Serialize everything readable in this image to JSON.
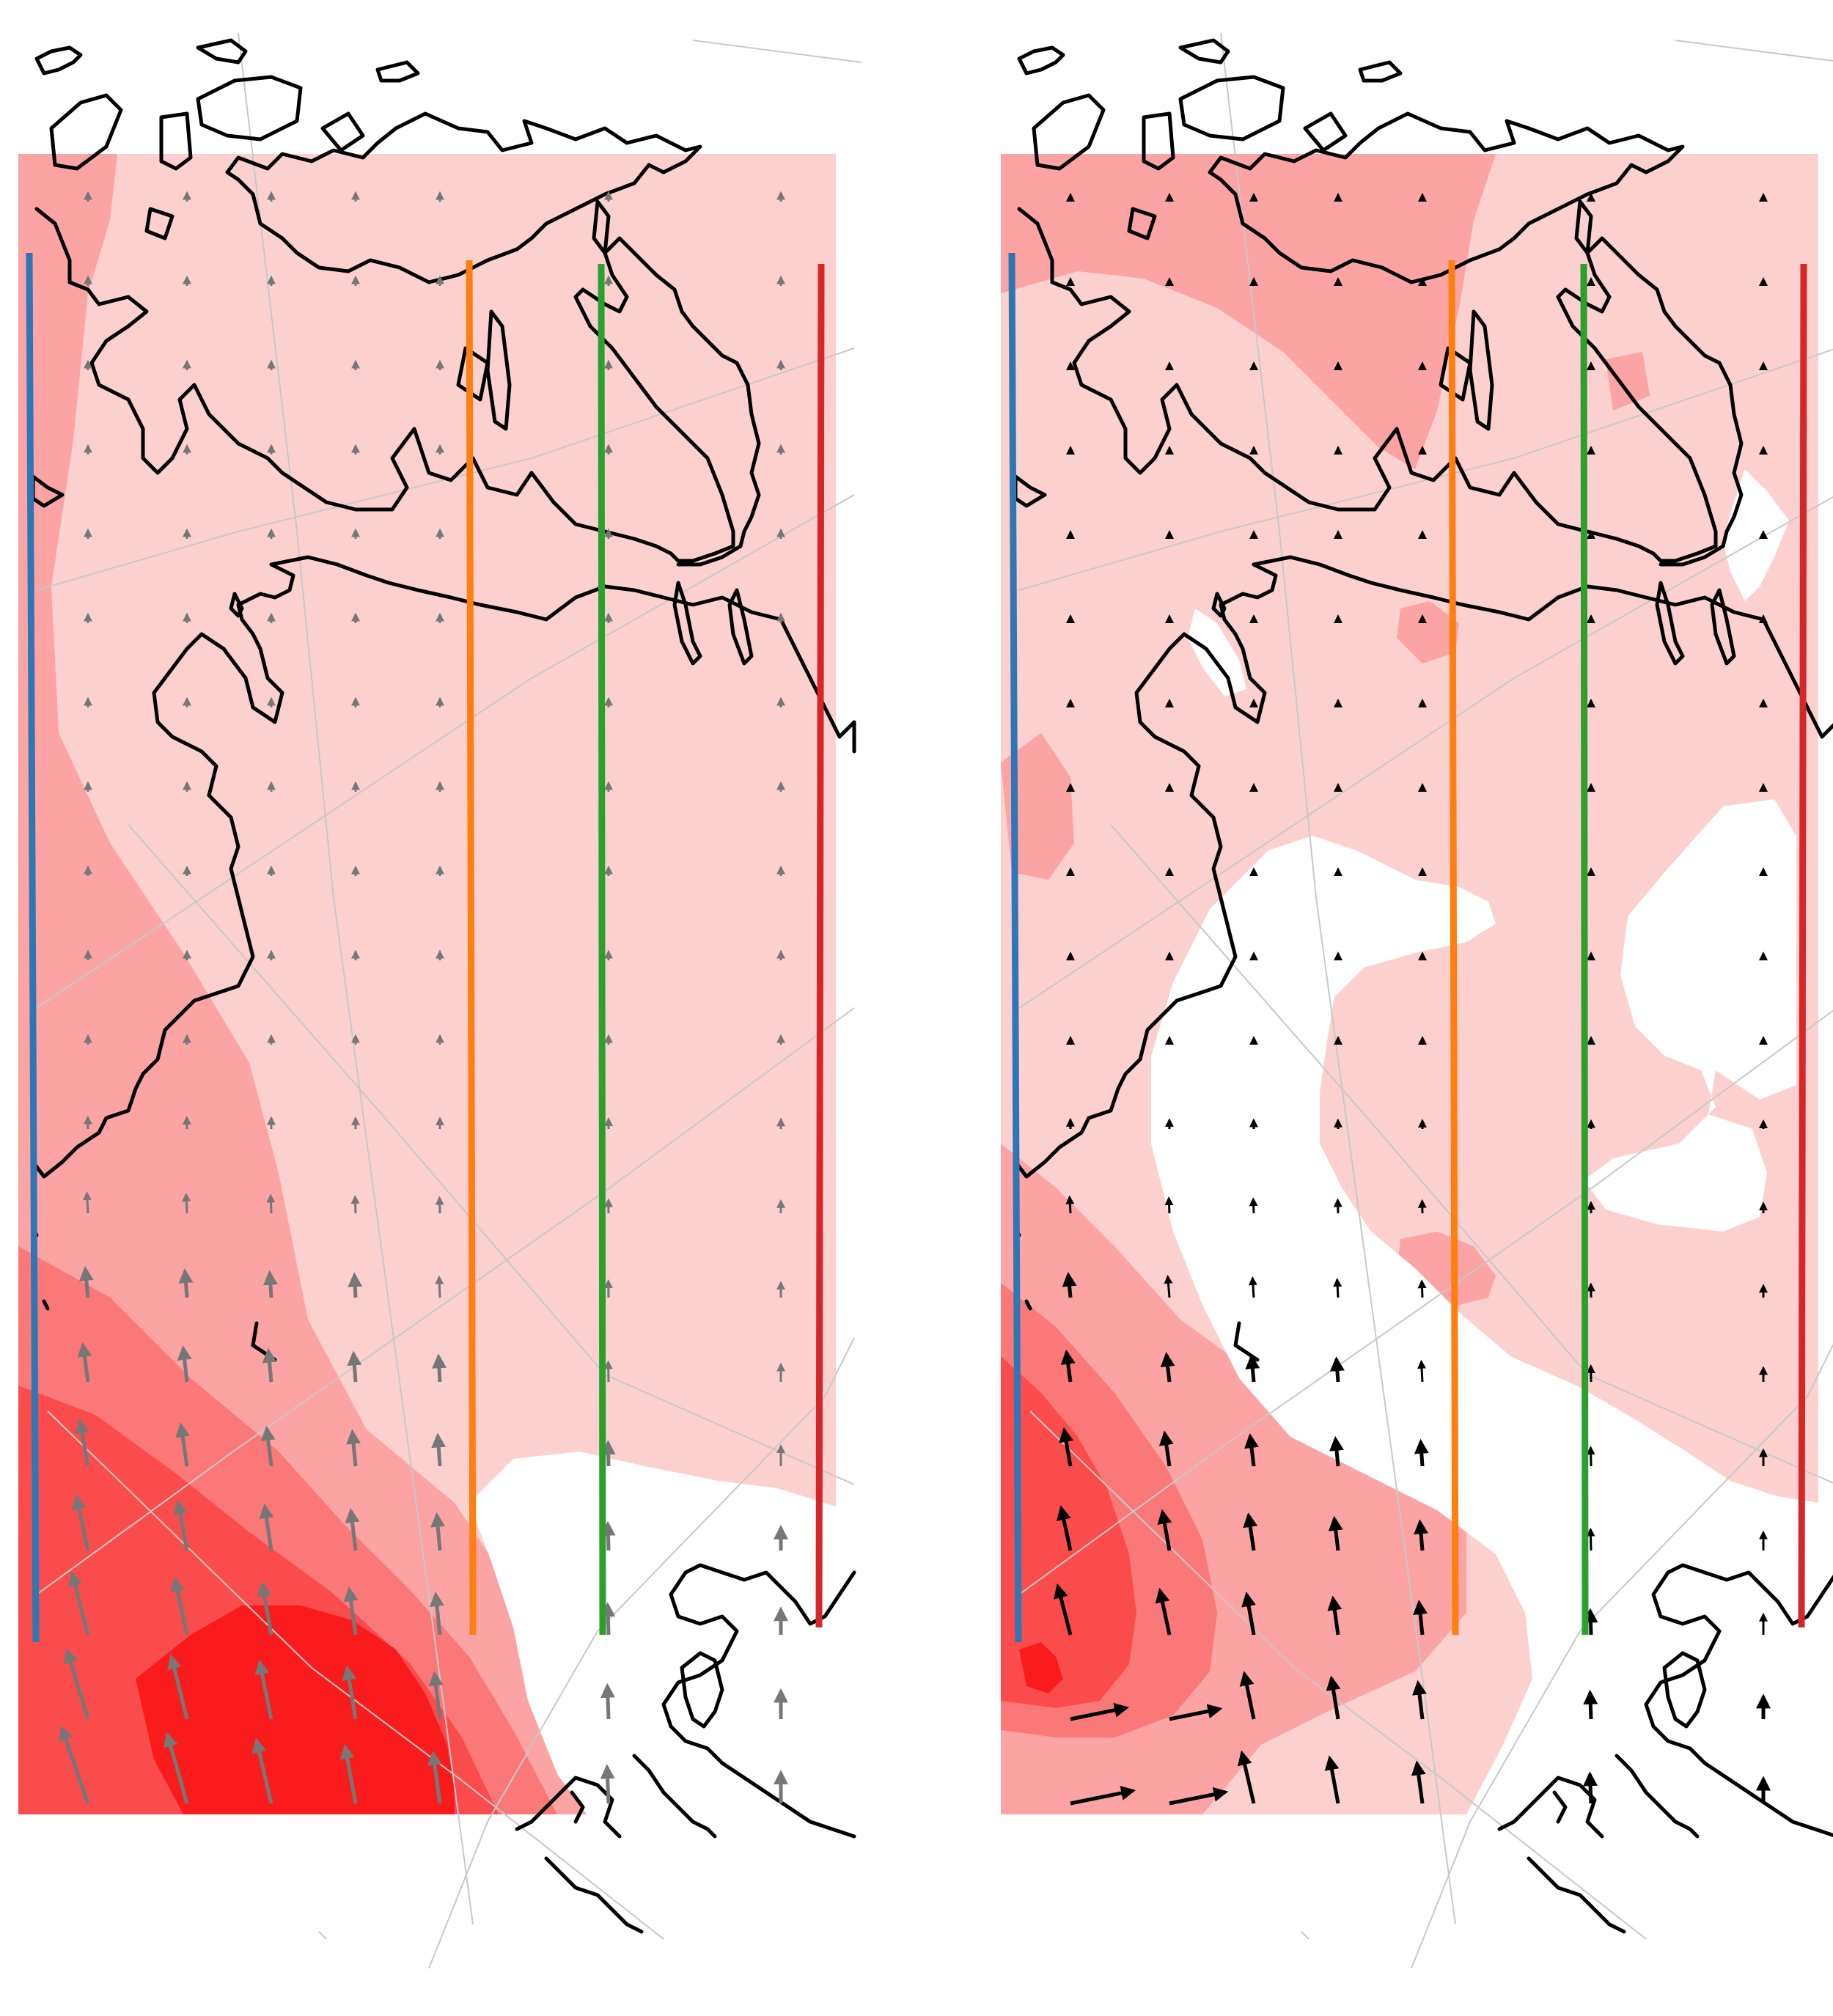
{
  "figure": {
    "panel_count": 2,
    "colors": {
      "shade_1": "#fdd0d0",
      "shade_2": "#fca3a3",
      "shade_3": "#fb7878",
      "shade_4": "#fa4c4c",
      "shade_5": "#fa1c1c",
      "coastline": "#000000",
      "graticule": "#c8c8c8",
      "vector_gray": "#777777",
      "vector_black": "#000000"
    },
    "sections": [
      {
        "id": "blue",
        "color": "#2f76b5"
      },
      {
        "id": "orange",
        "color": "#ff7f0e"
      },
      {
        "id": "green",
        "color": "#2ca02c"
      },
      {
        "id": "red",
        "color": "#d62728"
      }
    ],
    "panels": [
      {
        "id": "left",
        "vector_style": "gray"
      },
      {
        "id": "right",
        "vector_style": "black"
      }
    ]
  }
}
